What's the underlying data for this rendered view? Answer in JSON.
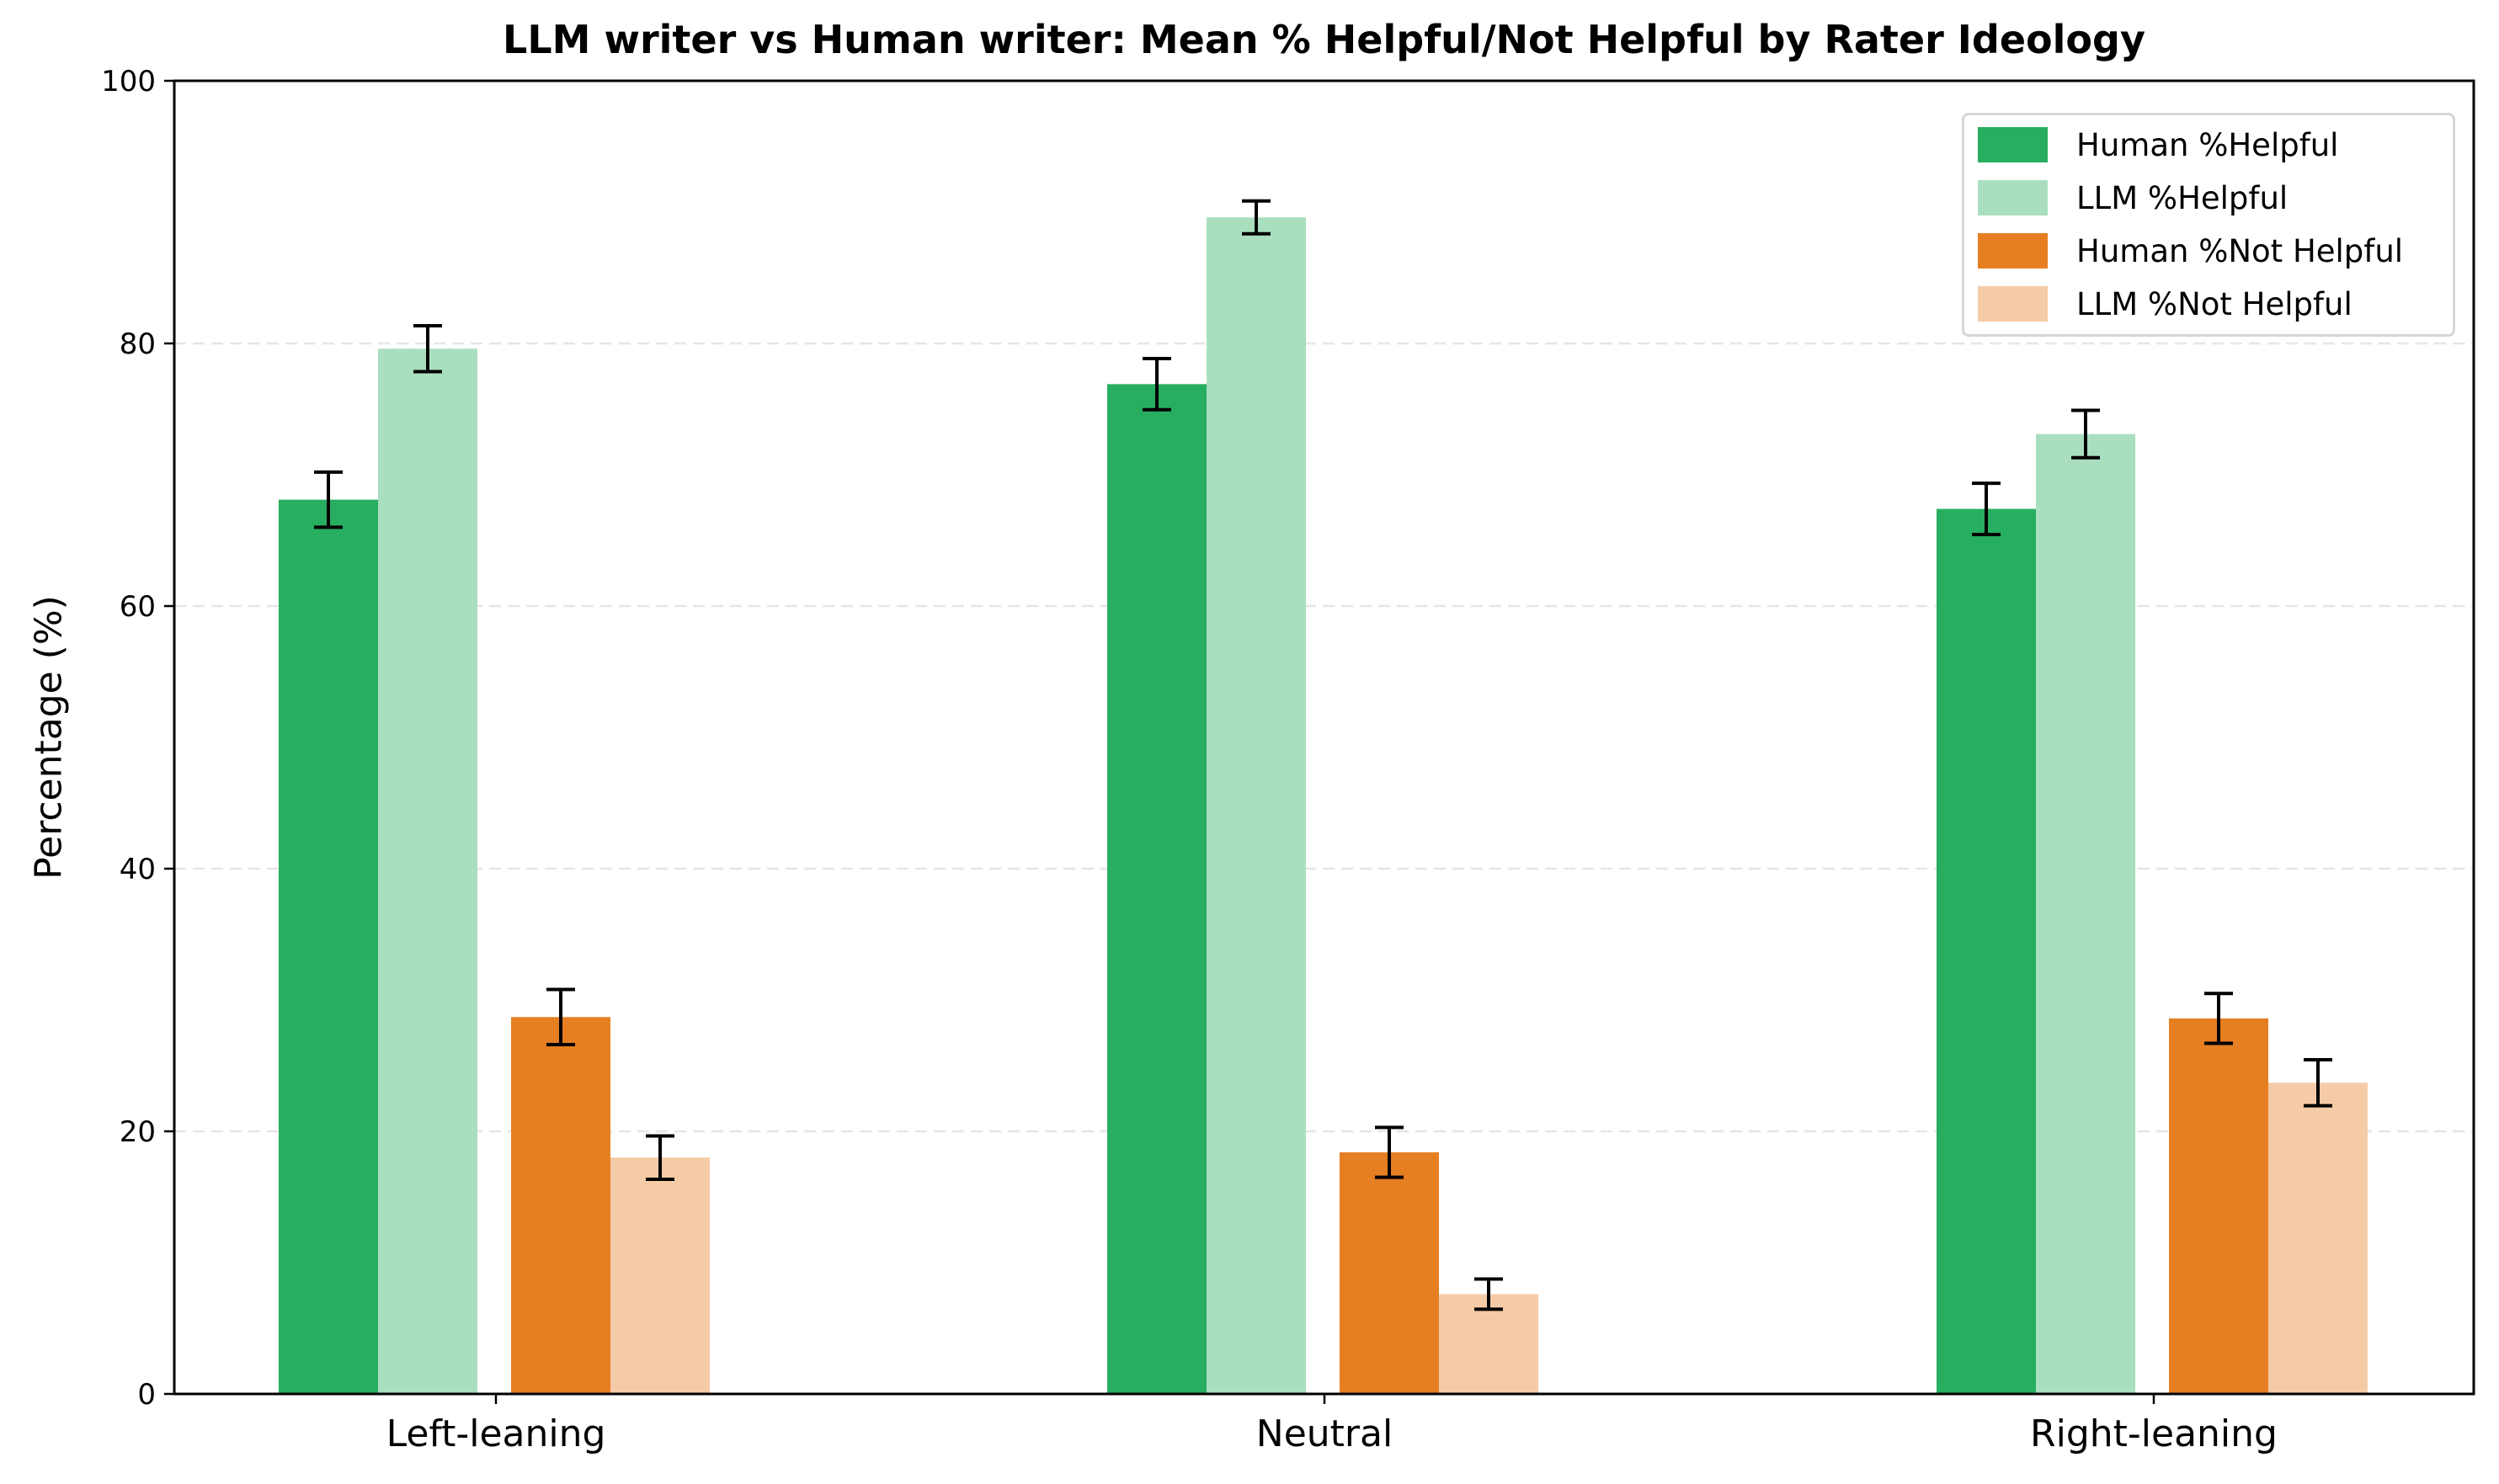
{
  "chart_data": {
    "type": "bar",
    "title": "LLM writer vs Human writer: Mean % Helpful/Not Helpful by Rater Ideology",
    "xlabel": "",
    "ylabel": "Percentage (%)",
    "ylim": [
      0,
      100
    ],
    "yticks": [
      0,
      20,
      40,
      60,
      80,
      100
    ],
    "grid": {
      "axis": "y",
      "style": "dashed",
      "color": "#e6e6e6"
    },
    "legend_position": "upper right",
    "categories": [
      "Left-leaning",
      "Neutral",
      "Right-leaning"
    ],
    "series": [
      {
        "name": "Human %Helpful",
        "color": "#27ae60",
        "values": [
          68.1,
          76.9,
          67.4
        ],
        "errors": [
          2.1,
          1.95,
          1.95
        ]
      },
      {
        "name": "LLM %Helpful",
        "color": "#a9dfbf",
        "values": [
          79.6,
          89.6,
          73.1
        ],
        "errors": [
          1.75,
          1.25,
          1.8
        ]
      },
      {
        "name": "Human %Not Helpful",
        "color": "#e67e22",
        "values": [
          28.7,
          18.4,
          28.6
        ],
        "errors": [
          2.1,
          1.9,
          1.9
        ]
      },
      {
        "name": "LLM %Not Helpful",
        "color": "#f5cba7",
        "values": [
          18.0,
          7.6,
          23.7
        ],
        "errors": [
          1.65,
          1.15,
          1.75
        ]
      }
    ]
  }
}
